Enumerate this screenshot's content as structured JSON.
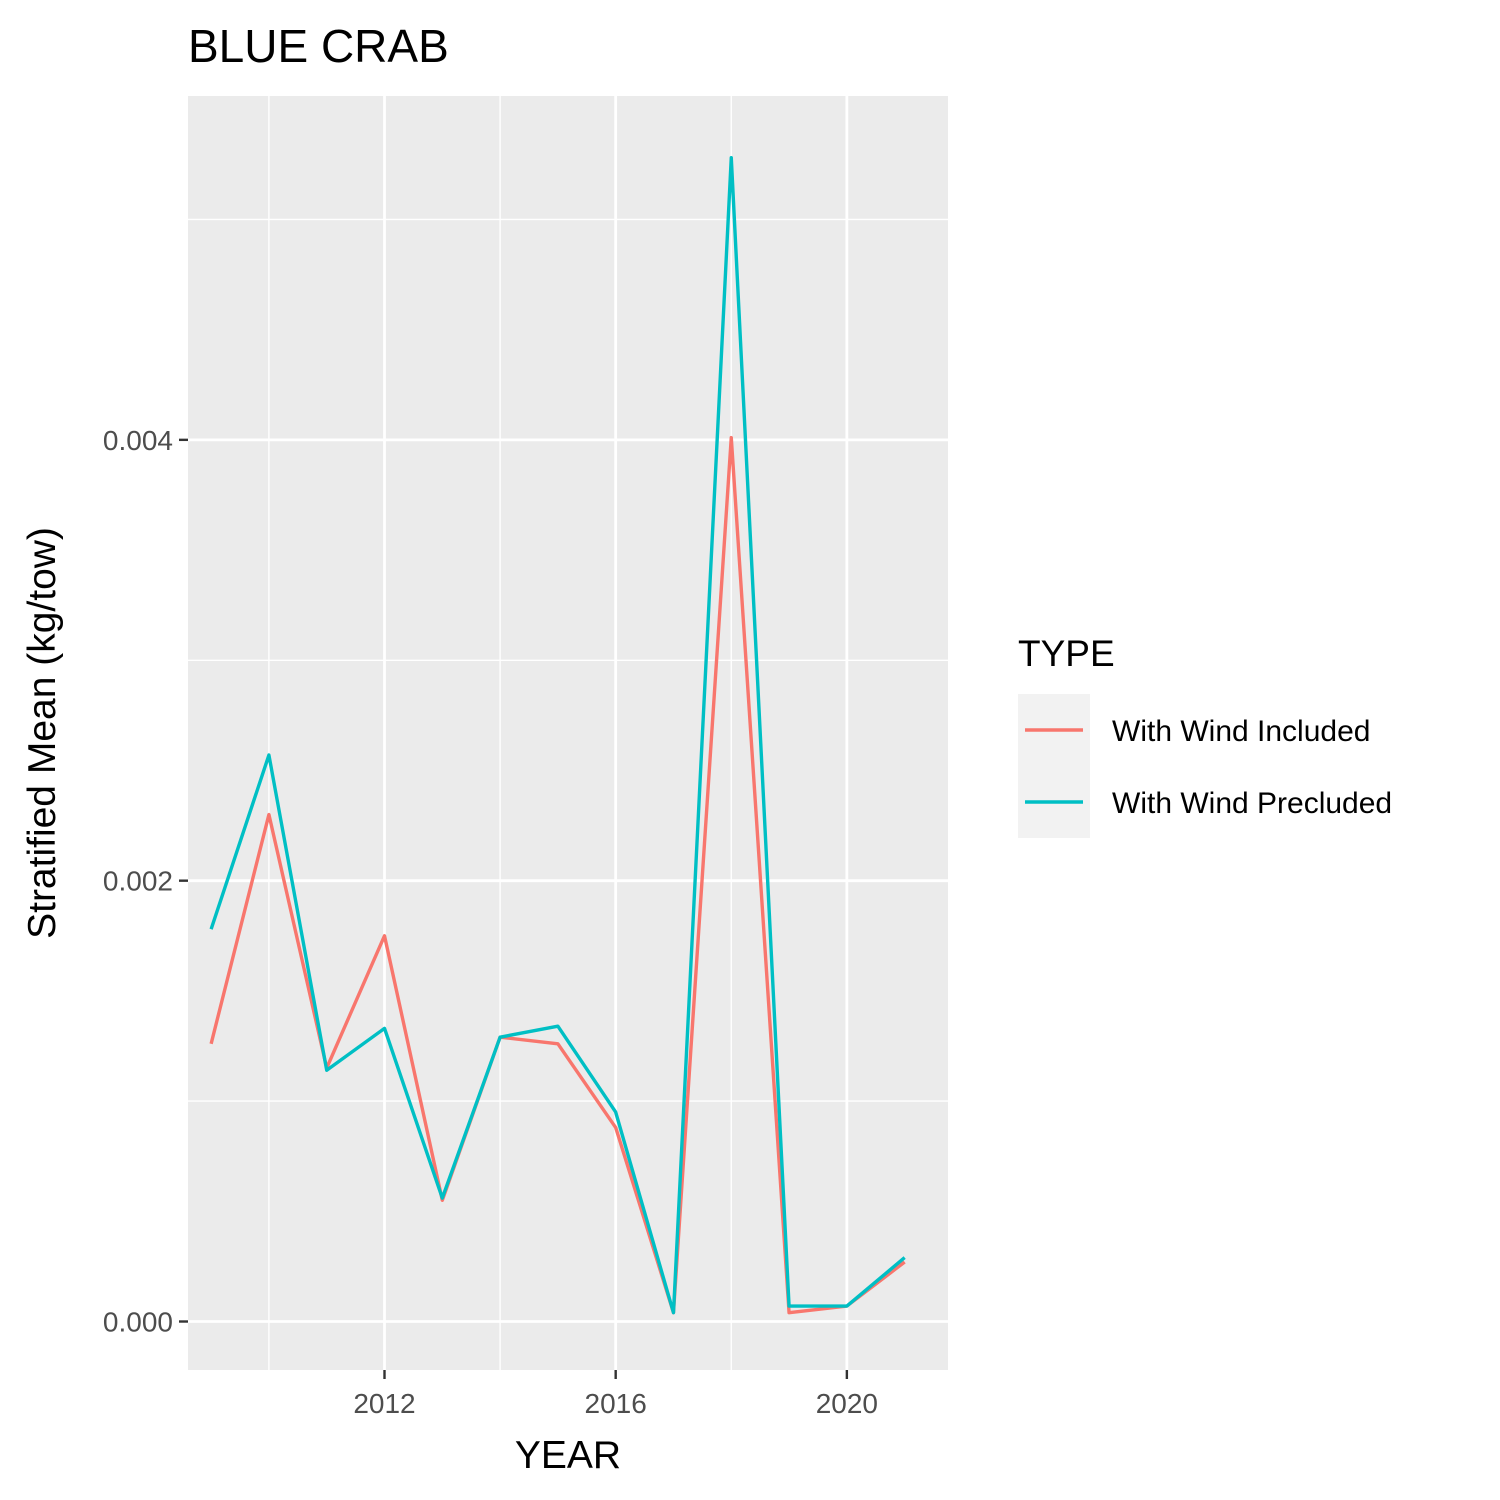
{
  "chart_data": {
    "type": "line",
    "title": "BLUE CRAB",
    "xlabel": "YEAR",
    "ylabel": "Stratified Mean (kg/tow)",
    "x": [
      2009,
      2010,
      2011,
      2012,
      2013,
      2014,
      2015,
      2016,
      2017,
      2018,
      2019,
      2020,
      2021
    ],
    "series": [
      {
        "name": "With Wind Included",
        "color": "#F8766D",
        "values": [
          0.00126,
          0.0023,
          0.00115,
          0.00175,
          0.00055,
          0.00129,
          0.00126,
          0.00088,
          4e-05,
          0.00401,
          4e-05,
          7e-05,
          0.00027
        ]
      },
      {
        "name": "With Wind Precluded",
        "color": "#00BFC4",
        "values": [
          0.00178,
          0.00257,
          0.00114,
          0.00133,
          0.00056,
          0.00129,
          0.00134,
          0.00095,
          4e-05,
          0.00528,
          7e-05,
          7e-05,
          0.00029
        ]
      }
    ],
    "xlim": [
      2008.6,
      2021.75
    ],
    "ylim": [
      -0.00022,
      0.00556
    ],
    "x_ticks": [
      2012,
      2016,
      2020
    ],
    "x_tick_labels": [
      "2012",
      "2016",
      "2020"
    ],
    "x_minor_ticks": [
      2010,
      2014,
      2018
    ],
    "y_ticks": [
      0,
      0.002,
      0.004
    ],
    "y_tick_labels": [
      "0.000",
      "0.002",
      "0.004"
    ],
    "y_minor_ticks": [
      0.001,
      0.003,
      0.005
    ],
    "grid": true,
    "legend": {
      "title": "TYPE",
      "position": "right"
    }
  }
}
